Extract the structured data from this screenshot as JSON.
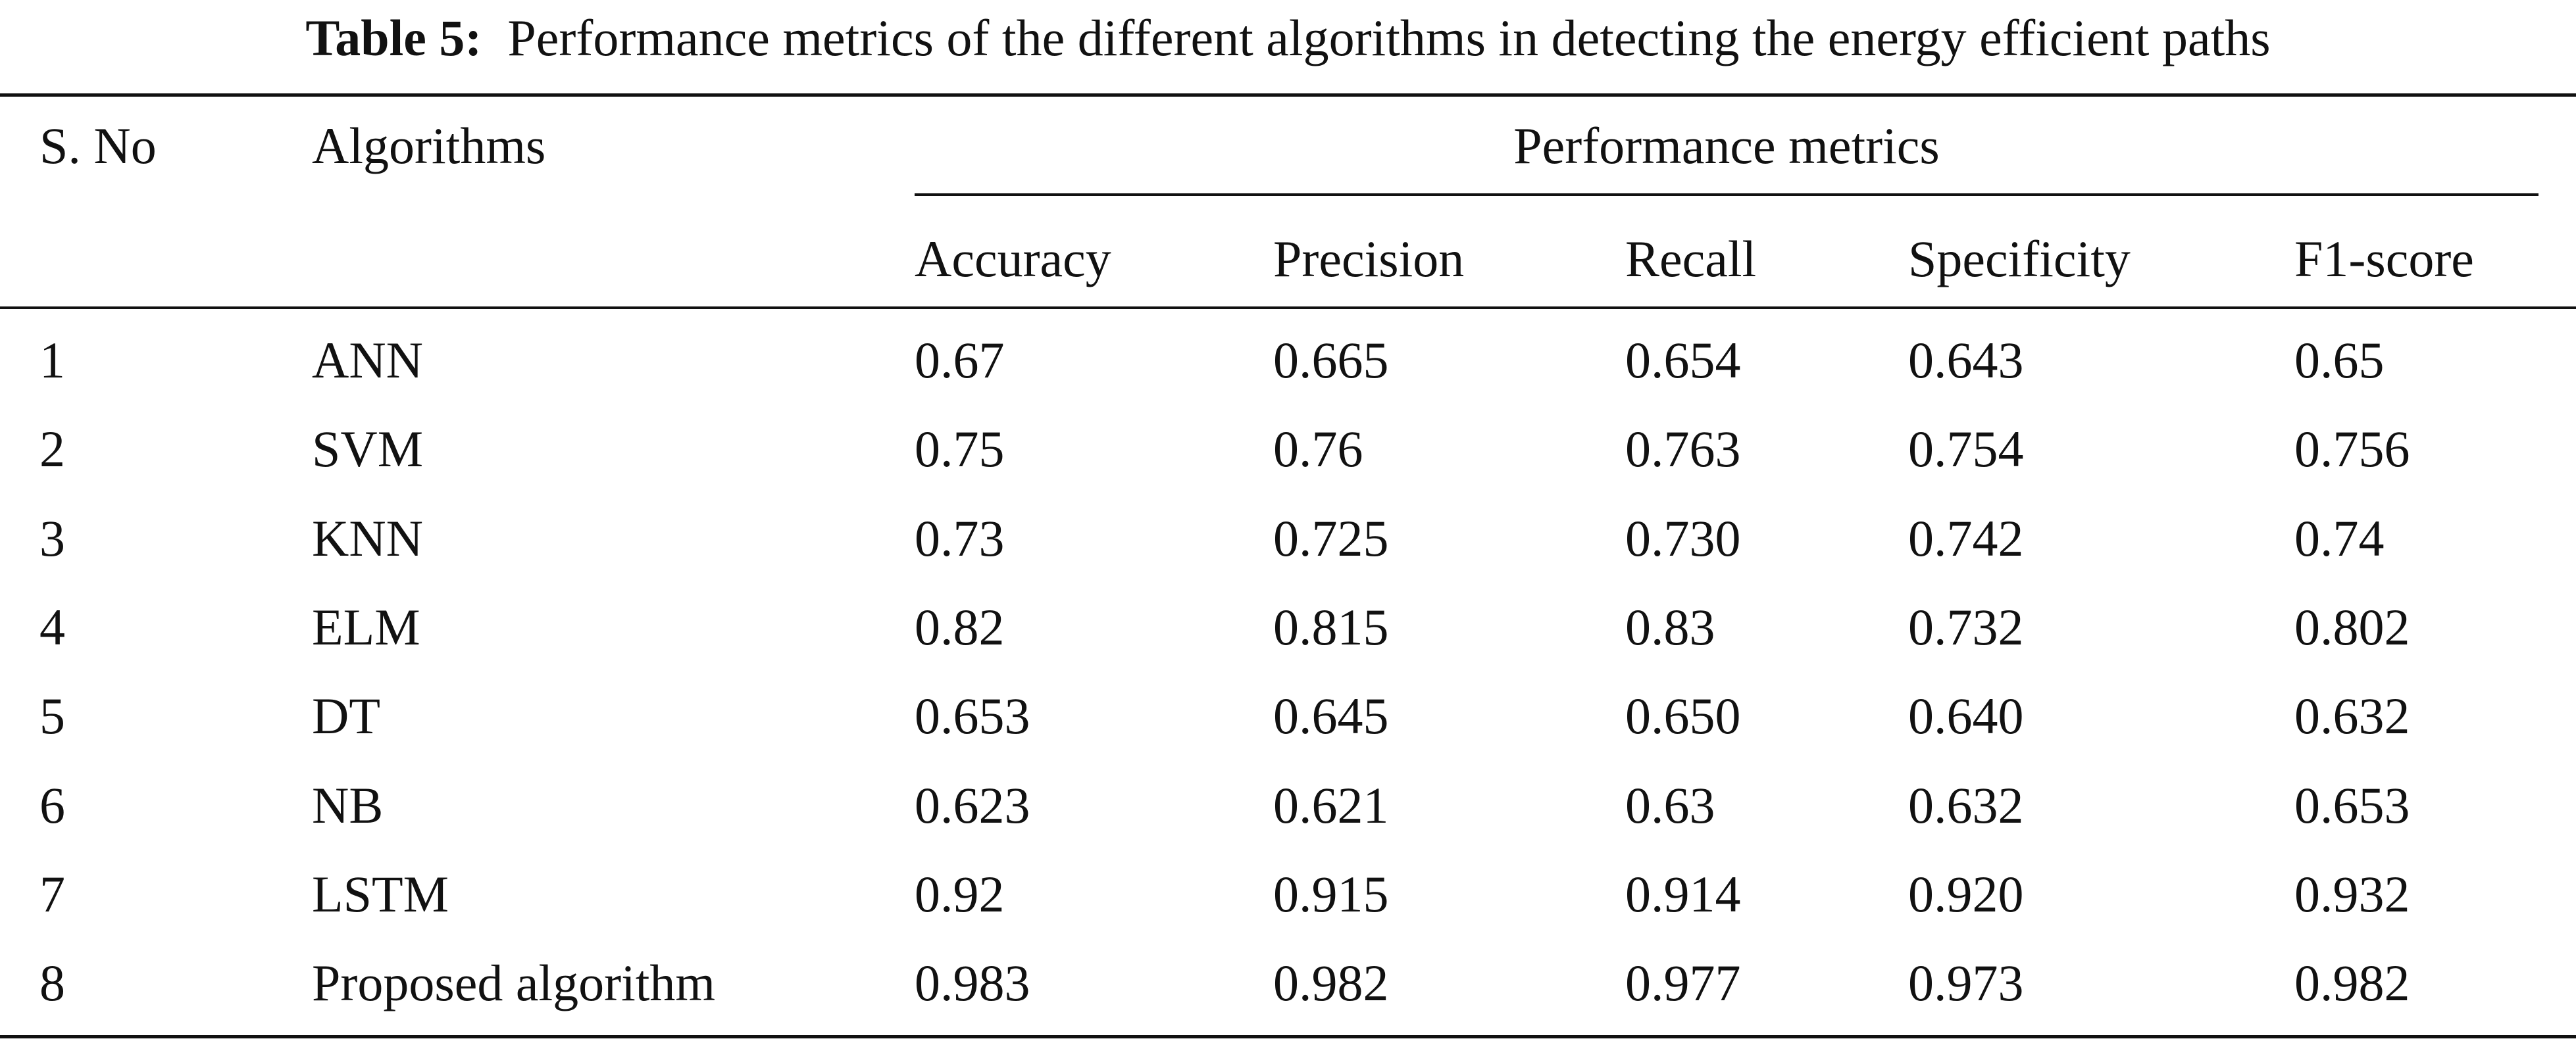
{
  "caption": {
    "label": "Table 5:",
    "text": "Performance metrics of the different algorithms in detecting the energy efficient paths"
  },
  "header": {
    "sno": "S. No",
    "algorithms": "Algorithms",
    "group": "Performance metrics",
    "metrics": [
      "Accuracy",
      "Precision",
      "Recall",
      "Specificity",
      "F1-score"
    ]
  },
  "rows": [
    [
      "1",
      "ANN",
      "0.67",
      "0.665",
      "0.654",
      "0.643",
      "0.65"
    ],
    [
      "2",
      "SVM",
      "0.75",
      "0.76",
      "0.763",
      "0.754",
      "0.756"
    ],
    [
      "3",
      "KNN",
      "0.73",
      "0.725",
      "0.730",
      "0.742",
      "0.74"
    ],
    [
      "4",
      "ELM",
      "0.82",
      "0.815",
      "0.83",
      "0.732",
      "0.802"
    ],
    [
      "5",
      "DT",
      "0.653",
      "0.645",
      "0.650",
      "0.640",
      "0.632"
    ],
    [
      "6",
      "NB",
      "0.623",
      "0.621",
      "0.63",
      "0.632",
      "0.653"
    ],
    [
      "7",
      "LSTM",
      "0.92",
      "0.915",
      "0.914",
      "0.920",
      "0.932"
    ],
    [
      "8",
      "Proposed algorithm",
      "0.983",
      "0.982",
      "0.977",
      "0.973",
      "0.982"
    ]
  ]
}
